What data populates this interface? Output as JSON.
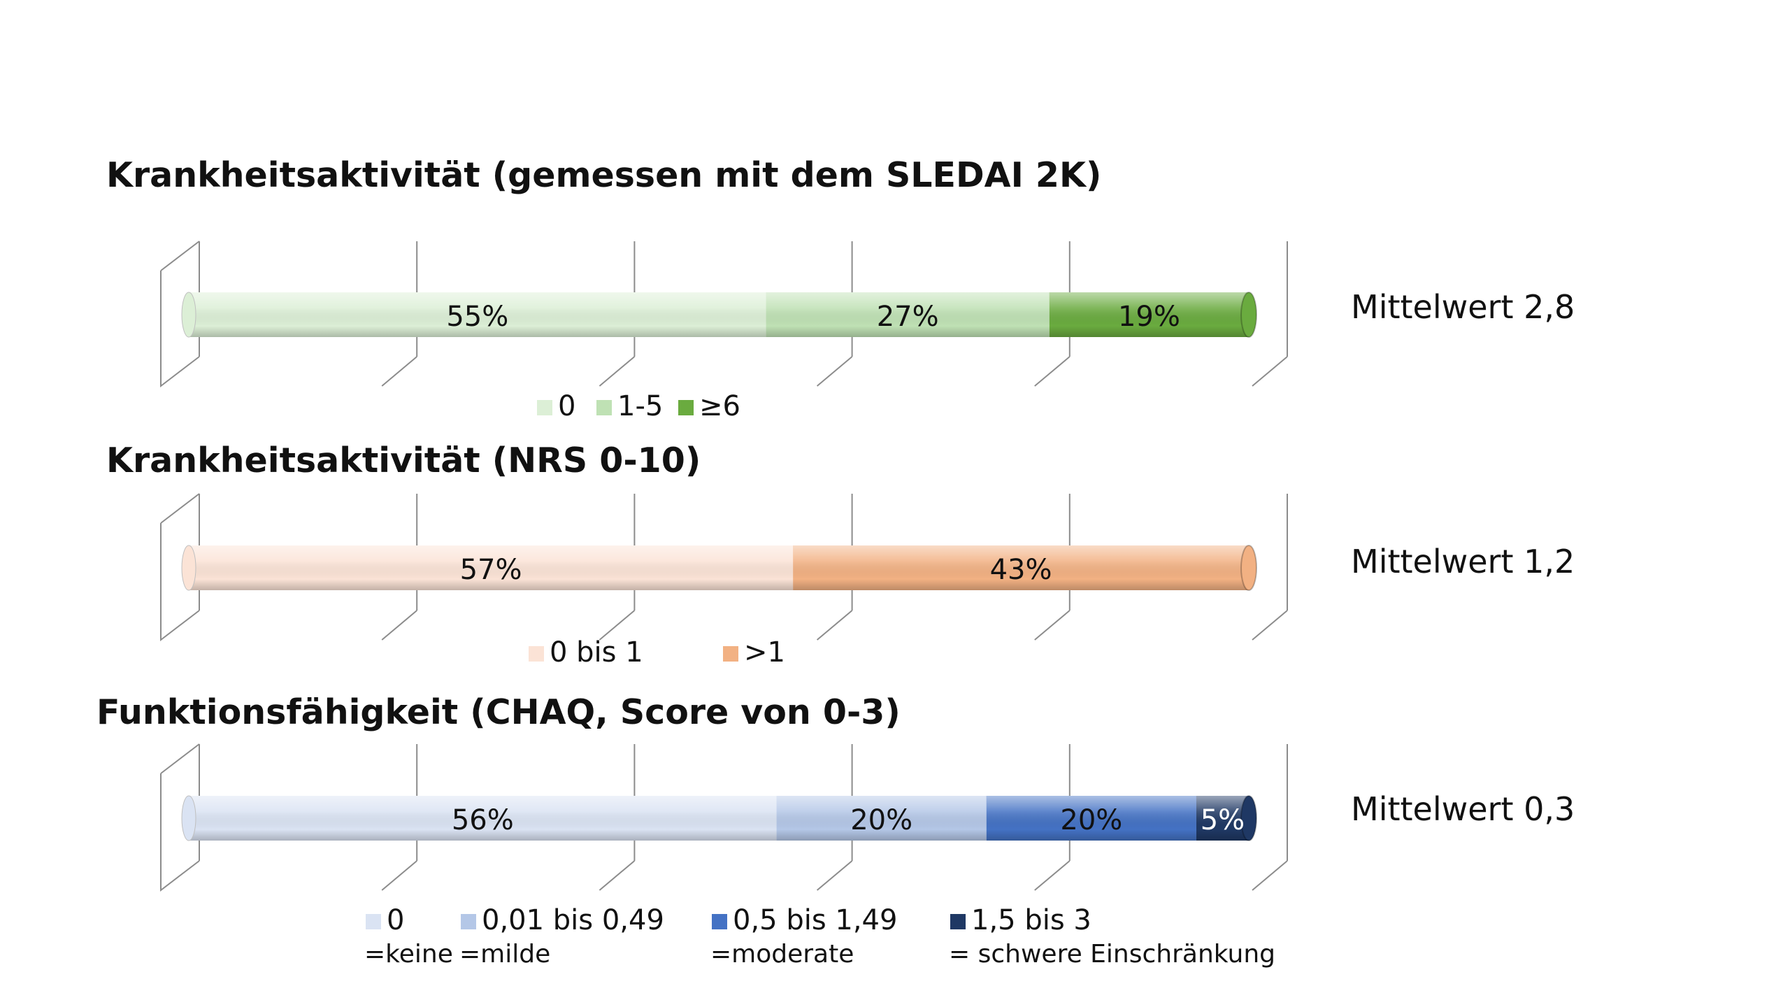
{
  "chart_data": [
    {
      "type": "bar",
      "orientation": "horizontal-stacked-100",
      "title": "Krankheitsaktivität (gemessen mit dem SLEDAI 2K)",
      "series": [
        {
          "name": "0",
          "value": 55,
          "label": "55%",
          "color": "#dcefd6"
        },
        {
          "name": "1-5",
          "value": 27,
          "label": "27%",
          "color": "#bfe1b4"
        },
        {
          "name": "≥6",
          "value": 19,
          "label": "19%",
          "color": "#6aab3f"
        }
      ],
      "legend": [
        {
          "label": "0",
          "sublabel": "",
          "color": "#dcefd6"
        },
        {
          "label": "1-5",
          "sublabel": "",
          "color": "#bfe1b4"
        },
        {
          "label": "≥6",
          "sublabel": "",
          "color": "#6aab3f"
        }
      ],
      "legend_position": "bottom",
      "annotation": "Mittelwert 2,8",
      "grid": true
    },
    {
      "type": "bar",
      "orientation": "horizontal-stacked-100",
      "title": "Krankheitsaktivität (NRS 0-10)",
      "series": [
        {
          "name": "0 bis 1",
          "value": 57,
          "label": "57%",
          "color": "#fbe3d6"
        },
        {
          "name": ">1",
          "value": 43,
          "label": "43%",
          "color": "#f2b183"
        }
      ],
      "legend": [
        {
          "label": "0 bis 1",
          "sublabel": "",
          "color": "#fbe3d6"
        },
        {
          "label": ">1",
          "sublabel": "",
          "color": "#f2b183"
        }
      ],
      "legend_position": "bottom",
      "annotation": "Mittelwert 1,2",
      "grid": true
    },
    {
      "type": "bar",
      "orientation": "horizontal-stacked-100",
      "title": "Funktionsfähigkeit (CHAQ, Score von 0-3)",
      "series": [
        {
          "name": "0",
          "value": 56,
          "label": "56%",
          "color": "#dae3f3"
        },
        {
          "name": "0,01 bis 0,49",
          "value": 20,
          "label": "20%",
          "color": "#b4c7e7"
        },
        {
          "name": "0,5 bis 1,49",
          "value": 20,
          "label": "20%",
          "color": "#4472c4"
        },
        {
          "name": "1,5 bis 3",
          "value": 5,
          "label": "5%",
          "color": "#1f3864"
        }
      ],
      "legend": [
        {
          "label": "0",
          "sublabel": "=keine",
          "color": "#dae3f3"
        },
        {
          "label": "0,01 bis 0,49",
          "sublabel": "=milde",
          "color": "#b4c7e7"
        },
        {
          "label": "0,5 bis 1,49",
          "sublabel": "=moderate",
          "color": "#4472c4"
        },
        {
          "label": "1,5 bis 3",
          "sublabel": "= schwere Einschränkung",
          "color": "#1f3864"
        }
      ],
      "legend_position": "bottom",
      "annotation": "Mittelwert 0,3",
      "grid": true
    }
  ]
}
